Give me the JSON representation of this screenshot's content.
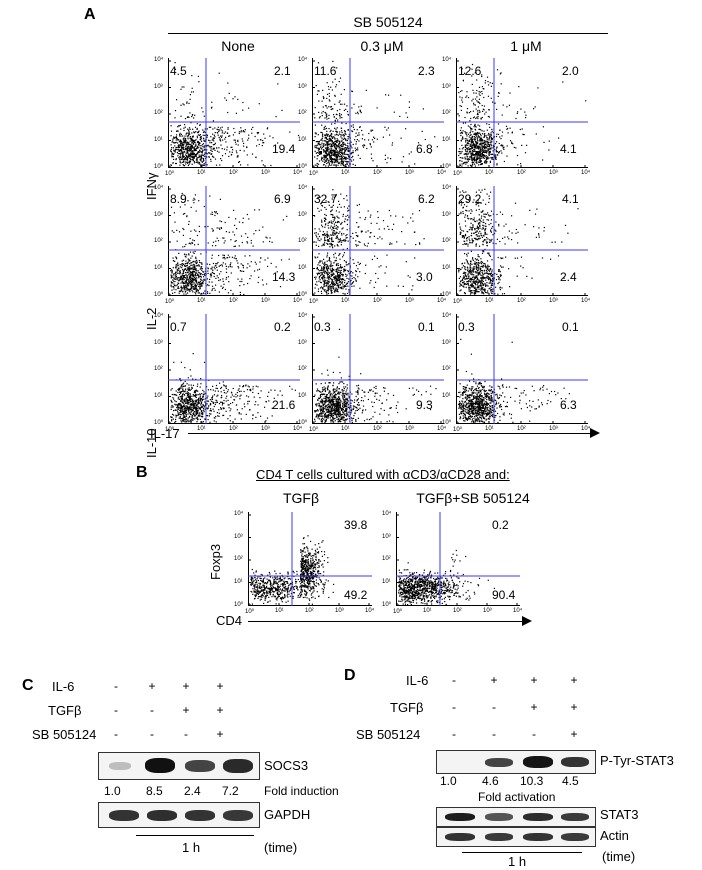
{
  "panelA": {
    "letter": "A",
    "treatment": "SB 505124",
    "columns": [
      "None",
      "0.3 μM",
      "1 μM"
    ],
    "rows": [
      {
        "label": "IFNγ",
        "quadrants": [
          [
            "4.5",
            "2.1",
            "19.4"
          ],
          [
            "11.6",
            "2.3",
            "6.8"
          ],
          [
            "12.6",
            "2.0",
            "4.1"
          ]
        ]
      },
      {
        "label": "IL-2",
        "quadrants": [
          [
            "8.9",
            "6.9",
            "14.3"
          ],
          [
            "32.7",
            "6.2",
            "3.0"
          ],
          [
            "29.2",
            "4.1",
            "2.4"
          ]
        ]
      },
      {
        "label": "IL-10",
        "quadrants": [
          [
            "0.7",
            "0.2",
            "21.6"
          ],
          [
            "0.3",
            "0.1",
            "9.3"
          ],
          [
            "0.3",
            "0.1",
            "6.3"
          ]
        ]
      }
    ],
    "xaxis": "IL-17",
    "ticks": [
      "10⁰",
      "10¹",
      "10²",
      "10³",
      "10⁴"
    ]
  },
  "panelB": {
    "letter": "B",
    "title": "CD4 T cells cultured with αCD3/αCD28 and:",
    "columns": [
      "TGFβ",
      "TGFβ+SB 505124"
    ],
    "quadrants": [
      [
        "39.8",
        "49.2"
      ],
      [
        "0.2",
        "90.4"
      ]
    ],
    "yaxis": "Foxp3",
    "xaxis": "CD4"
  },
  "panelC": {
    "letter": "C",
    "rows": [
      {
        "label": "IL-6",
        "signs": [
          "-",
          "+",
          "+",
          "+"
        ]
      },
      {
        "label": "TGFβ",
        "signs": [
          "-",
          "-",
          "+",
          "+"
        ]
      },
      {
        "label": "SB 505124",
        "signs": [
          "-",
          "-",
          "-",
          "+"
        ]
      }
    ],
    "blot1": "SOCS3",
    "fold": [
      "1.0",
      "8.5",
      "2.4",
      "7.2"
    ],
    "fold_label": "Fold induction",
    "blot2": "GAPDH",
    "time": "1 h",
    "time_label": "(time)"
  },
  "panelD": {
    "letter": "D",
    "rows": [
      {
        "label": "IL-6",
        "signs": [
          "-",
          "+",
          "+",
          "+"
        ]
      },
      {
        "label": "TGFβ",
        "signs": [
          "-",
          "-",
          "+",
          "+"
        ]
      },
      {
        "label": "SB 505124",
        "signs": [
          "-",
          "-",
          "-",
          "+"
        ]
      }
    ],
    "blot1": "P-Tyr-STAT3",
    "fold": [
      "1.0",
      "4.6",
      "10.3",
      "4.5"
    ],
    "fold_label": "Fold activation",
    "blot2": "STAT3",
    "blot3": "Actin",
    "time": "1 h",
    "time_label": "(time)"
  }
}
